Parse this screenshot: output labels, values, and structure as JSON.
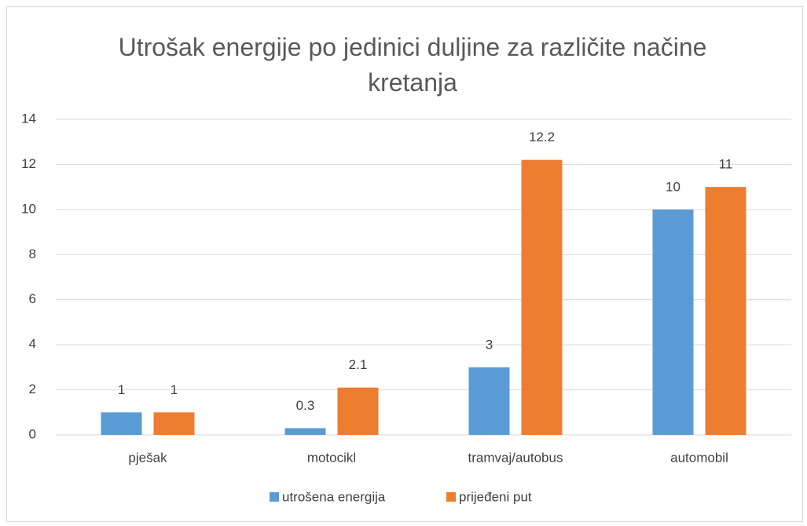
{
  "chart_data": {
    "type": "bar",
    "title": "Utrošak energije po jedinici duljine za različite načine kretanja",
    "categories": [
      "pješak",
      "motocikl",
      "tramvaj/autobus",
      "automobil"
    ],
    "series": [
      {
        "name": "utrošena energija",
        "color": "#5b9bd5",
        "values": [
          1,
          0.3,
          3,
          10
        ]
      },
      {
        "name": "prijeđeni put",
        "color": "#ed7d31",
        "values": [
          1,
          2.1,
          12.2,
          11
        ]
      }
    ],
    "ylim": [
      0,
      14
    ],
    "yticks": [
      0,
      2,
      4,
      6,
      8,
      10,
      12,
      14
    ],
    "grid": true,
    "legend": "bottom"
  }
}
